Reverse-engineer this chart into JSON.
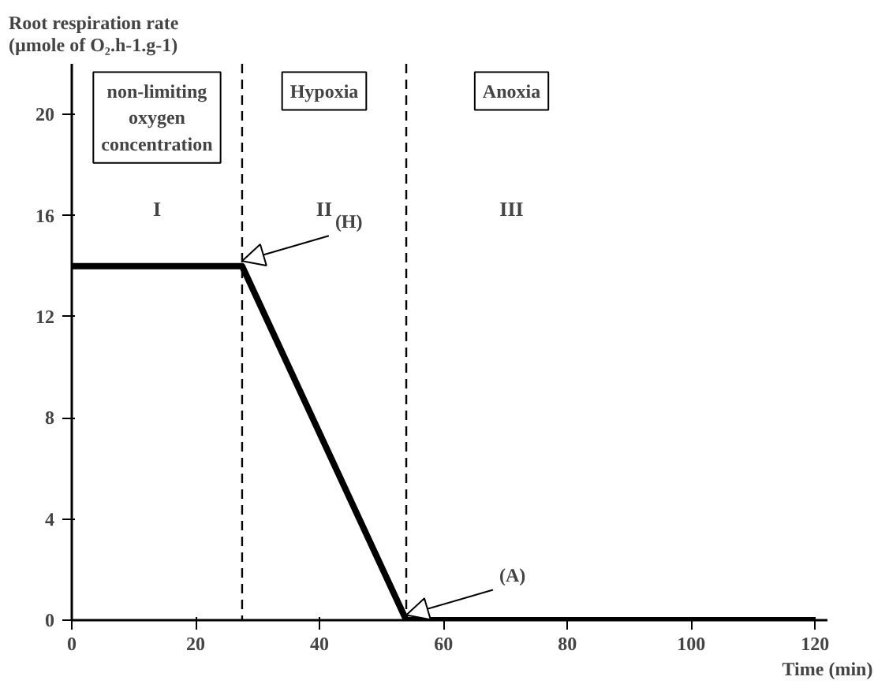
{
  "chart_data": {
    "type": "line",
    "ylabel": "Root respiration rate\n(µmole of O₂.h-1.g-1)",
    "xlabel": "Time (min)",
    "x": [
      0,
      27.5,
      54,
      120
    ],
    "series": [
      {
        "color": "#000000",
        "values": [
          14,
          14,
          0,
          0
        ]
      }
    ],
    "xlim": [
      0,
      122
    ],
    "ylim": [
      0,
      22
    ],
    "xticks": [
      0,
      20,
      40,
      60,
      80,
      100,
      120
    ],
    "yticks": [
      0,
      4,
      8,
      12,
      16,
      20
    ],
    "ref_lines": [
      {
        "axis": "x",
        "value": 27.5,
        "label": null,
        "color": "#000000",
        "line_style": "dashed"
      },
      {
        "axis": "x",
        "value": 54,
        "label": null,
        "color": "#000000",
        "line_style": "dashed"
      }
    ],
    "annotations": [
      "non-limiting\noxygen\nconcentration",
      "Hypoxia",
      "Anoxia",
      "I",
      "II",
      "III",
      {
        "text": "(H)",
        "x": 27.5,
        "y": 14
      },
      {
        "text": "(A)",
        "x": 54,
        "y": 0
      }
    ],
    "grid": false,
    "marker": "none",
    "line_style": "solid"
  }
}
